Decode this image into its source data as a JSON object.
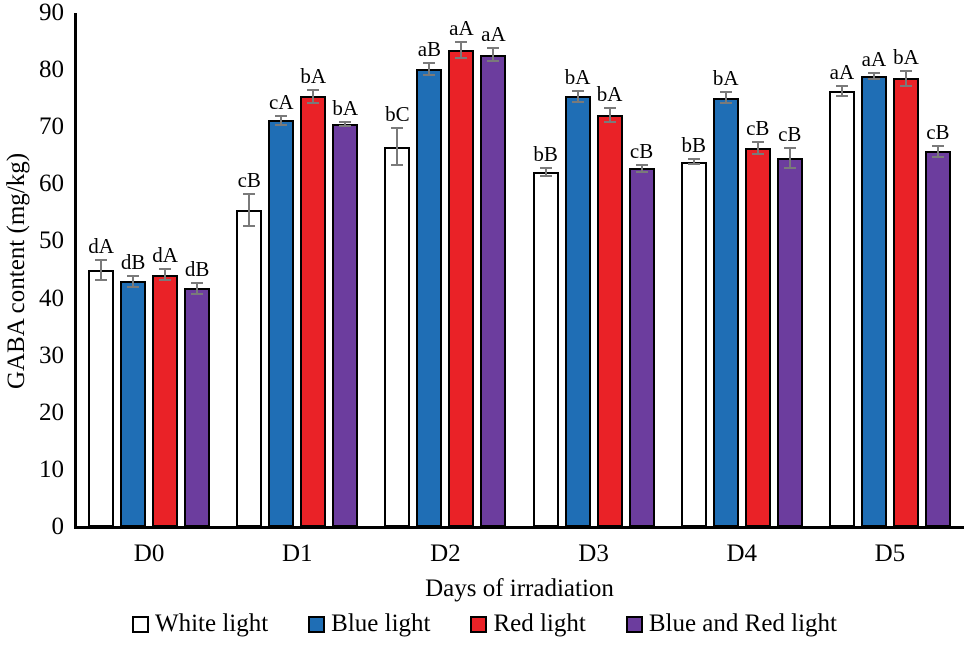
{
  "figure": {
    "y_axis_title": "GABA content (mg/kg)",
    "x_axis_title": "Days of irradiation"
  },
  "chart_data": {
    "type": "bar",
    "title": "",
    "xlabel": "Days of irradiation",
    "ylabel": "GABA content (mg/kg)",
    "categories": [
      "D0",
      "D1",
      "D2",
      "D3",
      "D4",
      "D5"
    ],
    "yticks": [
      0,
      10,
      20,
      30,
      40,
      50,
      60,
      70,
      80,
      90
    ],
    "ylim": [
      0,
      90
    ],
    "ytick_step": 10,
    "grid": false,
    "legend_position": "bottom",
    "error_bar_color": "#7a7a7a",
    "bar_outline_color": "#000000",
    "series": [
      {
        "name": "White light",
        "color": "#ffffff",
        "values": [
          45.0,
          55.5,
          66.6,
          62.2,
          64.0,
          76.4
        ],
        "errors": [
          1.8,
          2.8,
          3.2,
          0.7,
          0.4,
          0.9
        ],
        "labels": [
          "dA",
          "cB",
          "bC",
          "bB",
          "bB",
          "aA"
        ]
      },
      {
        "name": "Blue light",
        "color": "#1f6eb5",
        "values": [
          43.0,
          71.2,
          80.2,
          75.4,
          75.2,
          79.0
        ],
        "errors": [
          0.9,
          0.8,
          1.1,
          0.9,
          0.9,
          0.5
        ],
        "labels": [
          "dB",
          "cA",
          "aB",
          "bA",
          "bA",
          "aA"
        ]
      },
      {
        "name": "Red light",
        "color": "#ea2227",
        "values": [
          44.2,
          75.4,
          83.6,
          72.2,
          66.4,
          78.6
        ],
        "errors": [
          0.9,
          1.2,
          1.4,
          1.2,
          1.1,
          1.3
        ],
        "labels": [
          "dA",
          "bA",
          "aA",
          "bA",
          "cB",
          "bA"
        ]
      },
      {
        "name": "Blue and Red light",
        "color": "#6c3d9e",
        "values": [
          41.8,
          70.6,
          82.7,
          62.8,
          64.6,
          65.8
        ],
        "errors": [
          1.0,
          0.3,
          1.1,
          0.6,
          1.8,
          1.0
        ],
        "labels": [
          "dB",
          "bA",
          "aA",
          "cB",
          "cB",
          "cB"
        ]
      }
    ]
  }
}
